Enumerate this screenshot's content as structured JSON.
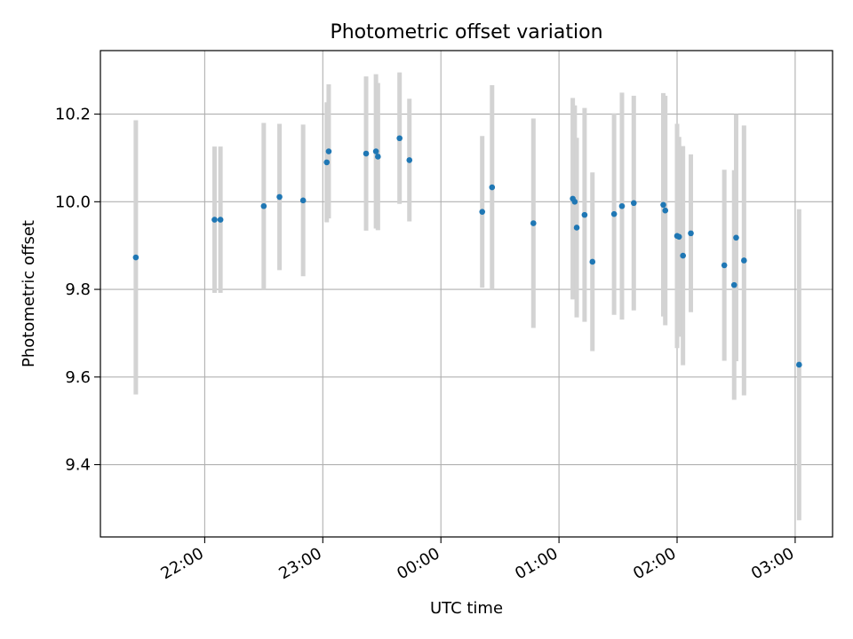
{
  "chart_data": {
    "type": "scatter",
    "title": "Photometric offset variation",
    "xlabel": "UTC time",
    "ylabel": "Photometric offset",
    "x_tick_labels": [
      "22:00",
      "23:00",
      "00:00",
      "01:00",
      "02:00",
      "03:00"
    ],
    "y_tick_labels": [
      "9.4",
      "9.6",
      "9.8",
      "10.0",
      "10.2"
    ],
    "xlim": [
      "21:07",
      "03:19"
    ],
    "ylim": [
      9.235,
      10.345
    ],
    "grid": true,
    "colors": {
      "points": "#1f77b4",
      "errorbars": "#d3d3d3",
      "grid": "#b0b0b0"
    },
    "series": [
      {
        "points": [
          {
            "x": "21:25",
            "y": 9.873,
            "err": 0.313
          },
          {
            "x": "22:05",
            "y": 9.959,
            "err": 0.167
          },
          {
            "x": "22:08",
            "y": 9.959,
            "err": 0.167
          },
          {
            "x": "22:30",
            "y": 9.99,
            "err": 0.19
          },
          {
            "x": "22:38",
            "y": 10.011,
            "err": 0.167
          },
          {
            "x": "22:50",
            "y": 10.003,
            "err": 0.173
          },
          {
            "x": "23:02",
            "y": 10.09,
            "err": 0.137
          },
          {
            "x": "23:03",
            "y": 10.115,
            "err": 0.153
          },
          {
            "x": "23:22",
            "y": 10.11,
            "err": 0.176
          },
          {
            "x": "23:27",
            "y": 10.115,
            "err": 0.176
          },
          {
            "x": "23:28",
            "y": 10.103,
            "err": 0.168
          },
          {
            "x": "23:39",
            "y": 10.145,
            "err": 0.15
          },
          {
            "x": "23:44",
            "y": 10.095,
            "err": 0.14
          },
          {
            "x": "00:21",
            "y": 9.977,
            "err": 0.173
          },
          {
            "x": "00:26",
            "y": 10.033,
            "err": 0.233
          },
          {
            "x": "00:47",
            "y": 9.951,
            "err": 0.239
          },
          {
            "x": "01:07",
            "y": 10.007,
            "err": 0.23
          },
          {
            "x": "01:08",
            "y": 10.0,
            "err": 0.22
          },
          {
            "x": "01:09",
            "y": 9.941,
            "err": 0.205
          },
          {
            "x": "01:13",
            "y": 9.97,
            "err": 0.244
          },
          {
            "x": "01:17",
            "y": 9.863,
            "err": 0.204
          },
          {
            "x": "01:28",
            "y": 9.972,
            "err": 0.23
          },
          {
            "x": "01:32",
            "y": 9.99,
            "err": 0.259
          },
          {
            "x": "01:38",
            "y": 9.997,
            "err": 0.245
          },
          {
            "x": "01:53",
            "y": 9.993,
            "err": 0.255
          },
          {
            "x": "01:54",
            "y": 9.98,
            "err": 0.262
          },
          {
            "x": "02:00",
            "y": 9.922,
            "err": 0.256
          },
          {
            "x": "02:01",
            "y": 9.92,
            "err": 0.228
          },
          {
            "x": "02:03",
            "y": 9.877,
            "err": 0.25
          },
          {
            "x": "02:07",
            "y": 9.928,
            "err": 0.18
          },
          {
            "x": "02:24",
            "y": 9.855,
            "err": 0.218
          },
          {
            "x": "02:29",
            "y": 9.81,
            "err": 0.262
          },
          {
            "x": "02:30",
            "y": 9.918,
            "err": 0.282
          },
          {
            "x": "02:34",
            "y": 9.866,
            "err": 0.308
          },
          {
            "x": "03:02",
            "y": 9.628,
            "err": 0.355
          }
        ]
      }
    ]
  }
}
